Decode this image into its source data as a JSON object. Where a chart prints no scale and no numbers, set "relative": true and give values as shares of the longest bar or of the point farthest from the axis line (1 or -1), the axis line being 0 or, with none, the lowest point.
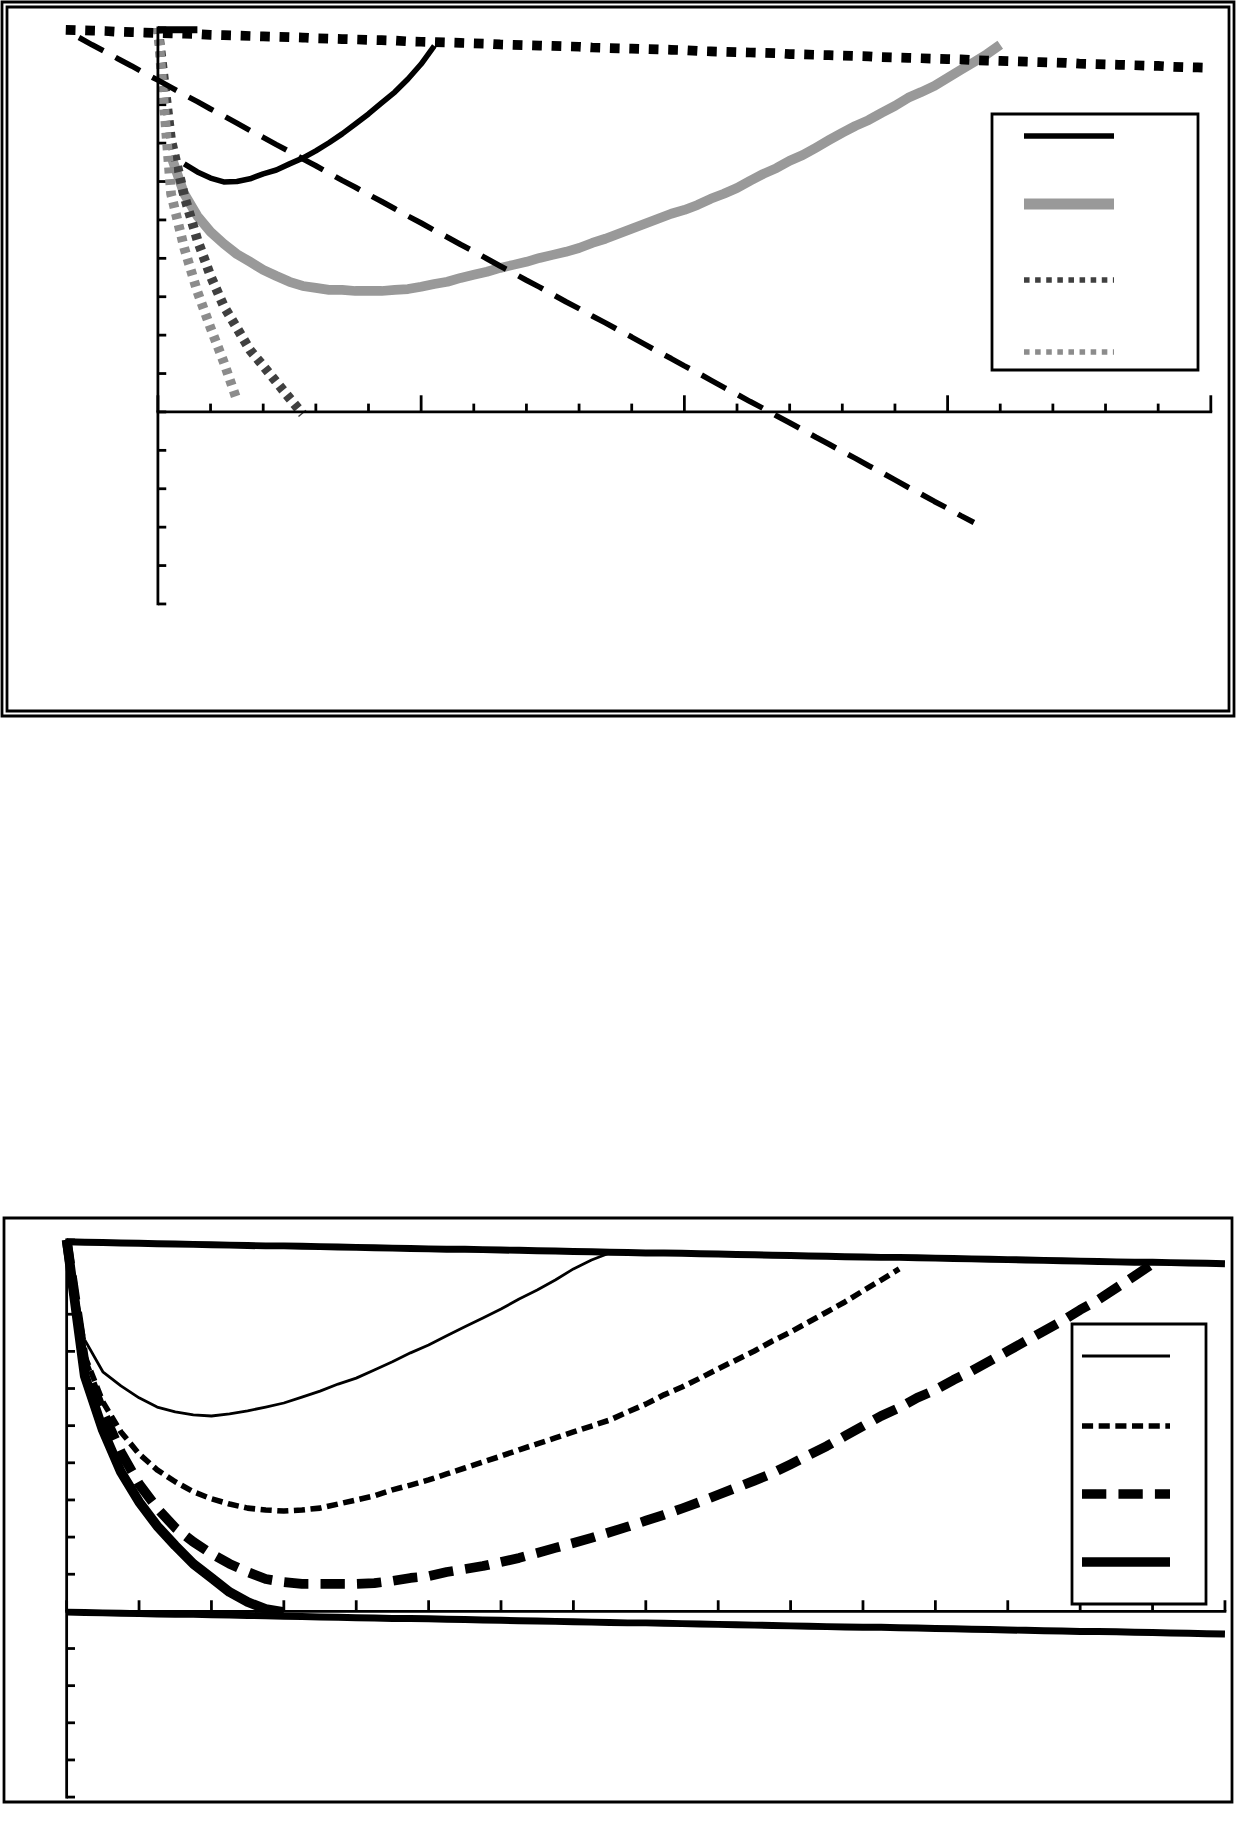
{
  "chart_data": [
    {
      "type": "line",
      "relative": true,
      "tick_labels": false,
      "categories": [
        null,
        null,
        null,
        null,
        null,
        null,
        null,
        null,
        null,
        null,
        null,
        null,
        null,
        null,
        null,
        null,
        null,
        null,
        null,
        null,
        null,
        null,
        null,
        null,
        null,
        null,
        null,
        null,
        null,
        null,
        null,
        null,
        null,
        null,
        null,
        null,
        null,
        null,
        null,
        null,
        null,
        null,
        null,
        null,
        null,
        null,
        null,
        null,
        null,
        null,
        null,
        null,
        null,
        null,
        null,
        null,
        null,
        null,
        null,
        null,
        null,
        null,
        null,
        null,
        null,
        null,
        null,
        null,
        null,
        null,
        null,
        null,
        null,
        null,
        null,
        null,
        null,
        null,
        null,
        null,
        null,
        null,
        null,
        null,
        null,
        null,
        null,
        null
      ],
      "series": [
        {
          "color": "#000000",
          "line_style": "solid",
          "values": [
            null,
            null,
            null,
            null,
            null,
            null,
            null,
            null,
            null,
            0.646,
            0.625,
            0.609,
            0.599,
            0.6,
            0.607,
            0.62,
            0.63,
            0.646,
            0.661,
            0.68,
            0.701,
            0.724,
            0.75,
            0.776,
            0.805,
            0.833,
            0.867,
            0.906,
            0.953,
            null,
            null,
            null,
            null,
            null,
            null,
            null,
            null,
            null,
            null,
            null,
            null,
            null,
            null,
            null,
            null,
            null,
            null,
            null,
            null,
            null,
            null,
            null,
            null,
            null,
            null,
            null,
            null,
            null,
            null,
            null,
            null,
            null,
            null,
            null,
            null,
            null,
            null,
            null,
            null,
            null,
            null,
            null,
            null,
            null,
            null,
            null,
            null,
            null,
            null,
            null,
            null,
            null,
            null,
            null,
            null,
            null,
            null,
            null
          ]
        },
        {
          "color": "#999999",
          "line_style": "solid",
          "values": [
            null,
            null,
            null,
            null,
            null,
            null,
            null,
            null,
            0.667,
            0.568,
            0.51,
            0.469,
            0.438,
            0.411,
            0.391,
            0.37,
            0.354,
            0.339,
            0.328,
            0.323,
            0.318,
            0.318,
            0.315,
            0.315,
            0.315,
            0.318,
            0.32,
            0.326,
            0.333,
            0.339,
            0.349,
            0.357,
            0.365,
            0.375,
            0.383,
            0.391,
            0.401,
            0.409,
            0.417,
            0.427,
            0.44,
            0.451,
            0.464,
            0.477,
            0.49,
            0.503,
            0.516,
            0.526,
            0.539,
            0.555,
            0.568,
            0.583,
            0.602,
            0.62,
            0.635,
            0.654,
            0.669,
            0.688,
            0.708,
            0.727,
            0.745,
            0.76,
            0.779,
            0.797,
            0.818,
            0.833,
            0.849,
            0.87,
            0.891,
            0.911,
            0.932,
            0.956,
            null,
            null,
            null,
            null,
            null,
            null,
            null,
            null,
            null,
            null,
            null,
            null,
            null,
            null,
            null,
            null
          ]
        },
        {
          "color": "#404040",
          "line_style": "dotted",
          "values": [
            null,
            null,
            null,
            null,
            null,
            null,
            null,
            1.0,
            0.708,
            0.563,
            0.448,
            0.354,
            0.276,
            0.219,
            0.161,
            0.12,
            0.078,
            0.036,
            -0.005,
            null,
            null,
            null,
            null,
            null,
            null,
            null,
            null,
            null,
            null,
            null,
            null,
            null,
            null,
            null,
            null,
            null,
            null,
            null,
            null,
            null,
            null,
            null,
            null,
            null,
            null,
            null,
            null,
            null,
            null,
            null,
            null,
            null,
            null,
            null,
            null,
            null,
            null,
            null,
            null,
            null,
            null,
            null,
            null,
            null,
            null,
            null,
            null,
            null,
            null,
            null,
            null,
            null,
            null,
            null,
            null,
            null,
            null,
            null,
            null,
            null,
            null,
            null,
            null,
            null,
            null,
            null,
            null,
            null
          ]
        },
        {
          "color": "#8c8c8c",
          "line_style": "dotted",
          "values": [
            null,
            null,
            null,
            null,
            null,
            null,
            null,
            1.0,
            0.568,
            0.427,
            0.313,
            0.219,
            0.13,
            0.031,
            null,
            null,
            null,
            null,
            null,
            null,
            null,
            null,
            null,
            null,
            null,
            null,
            null,
            null,
            null,
            null,
            null,
            null,
            null,
            null,
            null,
            null,
            null,
            null,
            null,
            null,
            null,
            null,
            null,
            null,
            null,
            null,
            null,
            null,
            null,
            null,
            null,
            null,
            null,
            null,
            null,
            null,
            null,
            null,
            null,
            null,
            null,
            null,
            null,
            null,
            null,
            null,
            null,
            null,
            null,
            null,
            null,
            null,
            null,
            null,
            null,
            null,
            null,
            null,
            null,
            null,
            null,
            null,
            null,
            null,
            null,
            null,
            null,
            null
          ]
        },
        {
          "color": "#000000",
          "line_style": "dotted",
          "values": [
            0.995,
            0.994,
            0.993,
            0.992,
            0.99,
            0.989,
            0.988,
            0.987,
            0.986,
            0.985,
            0.984,
            0.982,
            0.981,
            0.98,
            0.979,
            0.978,
            0.977,
            0.976,
            0.975,
            0.973,
            0.972,
            0.971,
            0.97,
            0.969,
            0.968,
            0.967,
            0.965,
            0.964,
            0.963,
            0.962,
            0.961,
            0.96,
            0.959,
            0.957,
            0.956,
            0.955,
            0.954,
            0.953,
            0.952,
            0.951,
            0.949,
            0.948,
            0.947,
            0.946,
            0.945,
            0.944,
            0.943,
            0.942,
            0.94,
            0.939,
            0.938,
            0.937,
            0.936,
            0.935,
            0.934,
            0.932,
            0.931,
            0.93,
            0.929,
            0.928,
            0.927,
            0.926,
            0.924,
            0.923,
            0.922,
            0.921,
            0.92,
            0.919,
            0.918,
            0.916,
            0.915,
            0.914,
            0.913,
            0.912,
            0.911,
            0.91,
            0.909,
            0.907,
            0.906,
            0.905,
            0.904,
            0.903,
            0.902,
            0.901,
            0.899,
            0.898,
            0.897,
            0.896
          ]
        },
        {
          "color": "#000000",
          "line_style": "dashed",
          "values": [
            null,
            0.975,
            0.956,
            0.938,
            0.919,
            0.901,
            0.882,
            0.864,
            0.845,
            0.826,
            0.808,
            0.789,
            0.771,
            0.752,
            0.733,
            0.715,
            0.696,
            0.678,
            0.659,
            0.641,
            0.622,
            0.603,
            0.585,
            0.566,
            0.548,
            0.529,
            0.51,
            0.492,
            0.473,
            0.455,
            0.436,
            0.418,
            0.399,
            0.38,
            0.362,
            0.343,
            0.325,
            0.306,
            0.287,
            0.269,
            0.25,
            0.232,
            0.213,
            0.195,
            0.176,
            0.157,
            0.139,
            0.12,
            0.102,
            0.083,
            0.064,
            0.046,
            0.027,
            0.009,
            -0.01,
            -0.028,
            -0.047,
            -0.066,
            -0.084,
            -0.103,
            -0.121,
            -0.14,
            -0.158,
            -0.177,
            -0.196,
            -0.214,
            -0.233,
            -0.251,
            -0.27,
            -0.288,
            null,
            null,
            null,
            null,
            null,
            null,
            null,
            null,
            null,
            null,
            null,
            null,
            null,
            null,
            null,
            null,
            null,
            null
          ]
        },
        {
          "color": "#000000",
          "line_style": "solid",
          "values": [
            null,
            null,
            null,
            null,
            null,
            null,
            null,
            0.995,
            0.995,
            0.995,
            0.995,
            null,
            null,
            null,
            null,
            null,
            null,
            null,
            null,
            null,
            null,
            null,
            null,
            null,
            null,
            null,
            null,
            null,
            null,
            null,
            null,
            null,
            null,
            null,
            null,
            null,
            null,
            null,
            null,
            null,
            null,
            null,
            null,
            null,
            null,
            null,
            null,
            null,
            null,
            null,
            null,
            null,
            null,
            null,
            null,
            null,
            null,
            null,
            null,
            null,
            null,
            null,
            null,
            null,
            null,
            null,
            null,
            null,
            null,
            null,
            null,
            null,
            null,
            null,
            null,
            null,
            null,
            null,
            null,
            null,
            null,
            null,
            null,
            null,
            null,
            null,
            null,
            null
          ]
        }
      ]
    },
    {
      "type": "line",
      "relative": true,
      "tick_labels": false,
      "categories": [
        null,
        null,
        null,
        null,
        null,
        null,
        null,
        null,
        null,
        null,
        null,
        null,
        null,
        null,
        null,
        null,
        null,
        null,
        null,
        null,
        null,
        null,
        null,
        null,
        null,
        null,
        null,
        null,
        null,
        null,
        null,
        null,
        null,
        null,
        null,
        null,
        null,
        null,
        null,
        null,
        null,
        null,
        null,
        null,
        null,
        null,
        null,
        null,
        null,
        null,
        null,
        null,
        null,
        null,
        null,
        null,
        null,
        null,
        null,
        null,
        null,
        null,
        null,
        null,
        null
      ],
      "series": [
        {
          "color": "#000000",
          "line_style": "solid",
          "values": [
            1.0,
            0.731,
            0.645,
            0.607,
            0.575,
            0.55,
            0.537,
            0.529,
            0.526,
            0.532,
            0.54,
            0.55,
            0.561,
            0.577,
            0.593,
            0.612,
            0.628,
            0.65,
            0.672,
            0.696,
            0.717,
            0.742,
            0.766,
            0.79,
            0.814,
            0.841,
            0.865,
            0.892,
            0.922,
            0.946,
            0.965,
            null,
            null,
            null,
            null,
            null,
            null,
            null,
            null,
            null,
            null,
            null,
            null,
            null,
            null,
            null,
            null,
            null,
            null,
            null,
            null,
            null,
            null,
            null,
            null,
            null,
            null,
            null,
            null,
            null,
            null,
            null,
            null,
            null,
            null
          ]
        },
        {
          "color": "#000000",
          "line_style": "dashed",
          "values": [
            1.0,
            0.688,
            0.564,
            0.483,
            0.424,
            0.381,
            0.349,
            0.322,
            0.303,
            0.289,
            0.278,
            0.273,
            0.27,
            0.273,
            0.278,
            0.289,
            0.3,
            0.311,
            0.327,
            0.34,
            0.354,
            0.37,
            0.386,
            0.402,
            0.418,
            0.435,
            0.451,
            0.467,
            0.483,
            0.499,
            0.515,
            0.537,
            0.558,
            0.583,
            0.604,
            0.628,
            0.653,
            0.677,
            0.701,
            0.728,
            0.752,
            0.779,
            0.806,
            0.833,
            0.863,
            0.892,
            0.922,
            null,
            null,
            null,
            null,
            null,
            null,
            null,
            null,
            null,
            null,
            null,
            null,
            null,
            null,
            null,
            null,
            null,
            null
          ]
        },
        {
          "color": "#000000",
          "line_style": "dashed",
          "values": [
            1.0,
            0.665,
            0.537,
            0.429,
            0.343,
            0.278,
            0.225,
            0.187,
            0.155,
            0.128,
            0.106,
            0.087,
            0.079,
            0.074,
            0.074,
            0.074,
            0.074,
            0.076,
            0.082,
            0.09,
            0.095,
            0.106,
            0.114,
            0.122,
            0.133,
            0.144,
            0.157,
            0.171,
            0.184,
            0.198,
            0.213,
            0.228,
            0.244,
            0.26,
            0.277,
            0.295,
            0.314,
            0.333,
            0.352,
            0.372,
            0.396,
            0.421,
            0.445,
            0.472,
            0.499,
            0.526,
            0.548,
            0.575,
            0.596,
            0.623,
            0.647,
            0.674,
            0.701,
            0.728,
            0.755,
            0.782,
            0.812,
            0.839,
            0.871,
            0.903,
            0.936,
            null,
            null,
            null,
            null
          ]
        },
        {
          "color": "#000000",
          "line_style": "solid",
          "values": [
            1.0,
            0.634,
            0.488,
            0.375,
            0.295,
            0.23,
            0.177,
            0.128,
            0.09,
            0.052,
            0.025,
            0.006,
            -0.002,
            null,
            null,
            null,
            null,
            null,
            null,
            null,
            null,
            null,
            null,
            null,
            null,
            null,
            null,
            null,
            null,
            null,
            null,
            null,
            null,
            null,
            null,
            null,
            null,
            null,
            null,
            null,
            null,
            null,
            null,
            null,
            null,
            null,
            null,
            null,
            null,
            null,
            null,
            null,
            null,
            null,
            null,
            null,
            null,
            null,
            null,
            null,
            null,
            null,
            null,
            null,
            null
          ]
        },
        {
          "color": "#000000",
          "line_style": "solid",
          "values": [
            0.995,
            0.994,
            0.993,
            0.992,
            0.991,
            0.99,
            0.989,
            0.988,
            0.987,
            0.986,
            0.985,
            0.984,
            0.984,
            0.983,
            0.982,
            0.981,
            0.98,
            0.979,
            0.978,
            0.977,
            0.976,
            0.975,
            0.975,
            0.974,
            0.973,
            0.972,
            0.971,
            0.97,
            0.969,
            0.968,
            0.967,
            0.966,
            0.965,
            0.965,
            0.964,
            0.963,
            0.962,
            0.961,
            0.96,
            0.959,
            0.958,
            0.957,
            0.956,
            0.955,
            0.954,
            0.953,
            0.953,
            0.952,
            0.951,
            0.95,
            0.949,
            0.948,
            0.947,
            0.946,
            0.945,
            0.944,
            0.943,
            0.942,
            0.941,
            0.94,
            0.94,
            0.939,
            0.938,
            0.937,
            0.936
          ]
        },
        {
          "color": "#000000",
          "line_style": "solid",
          "values": [
            -0.002,
            -0.003,
            -0.004,
            -0.005,
            -0.006,
            -0.007,
            -0.008,
            -0.008,
            -0.009,
            -0.01,
            -0.011,
            -0.012,
            -0.013,
            -0.014,
            -0.015,
            -0.016,
            -0.017,
            -0.018,
            -0.019,
            -0.019,
            -0.02,
            -0.021,
            -0.022,
            -0.023,
            -0.024,
            -0.025,
            -0.026,
            -0.027,
            -0.028,
            -0.029,
            -0.03,
            -0.031,
            -0.031,
            -0.032,
            -0.033,
            -0.034,
            -0.035,
            -0.036,
            -0.037,
            -0.038,
            -0.039,
            -0.04,
            -0.041,
            -0.042,
            -0.043,
            -0.043,
            -0.044,
            -0.045,
            -0.046,
            -0.047,
            -0.048,
            -0.049,
            -0.05,
            -0.051,
            -0.052,
            -0.053,
            -0.054,
            -0.054,
            -0.055,
            -0.056,
            -0.057,
            -0.058,
            -0.059,
            -0.06,
            -0.061
          ]
        }
      ]
    }
  ]
}
